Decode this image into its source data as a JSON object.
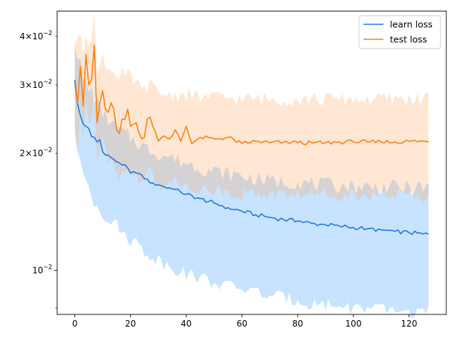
{
  "chart_data": {
    "type": "line",
    "title": "",
    "xlabel": "",
    "ylabel": "",
    "xlim": [
      -6.35,
      133.35
    ],
    "ylim": [
      0.0077,
      0.0465
    ],
    "yscale": "log",
    "grid": false,
    "legend_position": "top-right",
    "x_ticks": [
      0,
      20,
      40,
      60,
      80,
      100,
      120
    ],
    "x_tick_labels": [
      "0",
      "20",
      "40",
      "60",
      "80",
      "100",
      "120"
    ],
    "y_ticks_major": [
      0.01
    ],
    "y_major_labels": [
      {
        "value": 0.01,
        "mantissa": "",
        "exponent": "−2"
      }
    ],
    "y_ticks_minor": [
      0.008,
      0.02,
      0.03,
      0.04
    ],
    "y_minor_labels": [
      {
        "value": 0.02,
        "mantissa": "2",
        "exponent": "−2"
      },
      {
        "value": 0.03,
        "mantissa": "3",
        "exponent": "−2"
      },
      {
        "value": 0.04,
        "mantissa": "4",
        "exponent": "−2"
      }
    ],
    "series": [
      {
        "name": "learn loss",
        "color": "#1f77e0",
        "band_color": "#1f8fff",
        "knots_x": [
          0,
          1,
          2,
          3,
          4,
          5,
          6,
          7,
          8,
          9,
          10,
          11,
          12,
          14,
          16,
          18,
          20,
          22,
          24,
          25,
          28,
          30,
          32,
          35,
          38,
          40,
          45,
          50,
          55,
          60,
          65,
          70,
          75,
          80,
          85,
          90,
          95,
          100,
          105,
          110,
          115,
          120,
          125,
          127
        ],
        "knots_mean": [
          0.0309,
          0.0268,
          0.025,
          0.0238,
          0.0235,
          0.0232,
          0.0221,
          0.022,
          0.0214,
          0.0217,
          0.0202,
          0.0198,
          0.0198,
          0.0193,
          0.0189,
          0.0187,
          0.0178,
          0.0178,
          0.0176,
          0.0172,
          0.0168,
          0.0166,
          0.0164,
          0.0162,
          0.0159,
          0.0157,
          0.0153,
          0.0149,
          0.0145,
          0.0142,
          0.0139,
          0.0137,
          0.0135,
          0.0134,
          0.0132,
          0.0131,
          0.013,
          0.0129,
          0.0128,
          0.0127,
          0.0126,
          0.0125,
          0.0124,
          0.0124
        ],
        "knots_upper": [
          0.039,
          0.036,
          0.034,
          0.031,
          0.03,
          0.029,
          0.029,
          0.028,
          0.027,
          0.026,
          0.0255,
          0.025,
          0.0245,
          0.0235,
          0.023,
          0.0225,
          0.022,
          0.0215,
          0.021,
          0.0207,
          0.0203,
          0.02,
          0.0198,
          0.0195,
          0.0191,
          0.0189,
          0.0184,
          0.018,
          0.0177,
          0.0175,
          0.0172,
          0.017,
          0.0169,
          0.0168,
          0.0167,
          0.0166,
          0.0165,
          0.0165,
          0.0164,
          0.0164,
          0.0164,
          0.0163,
          0.0163,
          0.0163
        ],
        "knots_lower": [
          0.024,
          0.02,
          0.0185,
          0.0178,
          0.0172,
          0.0165,
          0.0158,
          0.015,
          0.0148,
          0.0145,
          0.014,
          0.0138,
          0.0136,
          0.0133,
          0.0128,
          0.0124,
          0.012,
          0.0118,
          0.0114,
          0.0112,
          0.0108,
          0.0107,
          0.0104,
          0.0102,
          0.01,
          0.0098,
          0.0096,
          0.0093,
          0.0091,
          0.009,
          0.0088,
          0.0086,
          0.0085,
          0.0084,
          0.0082,
          0.0082,
          0.0081,
          0.008,
          0.008,
          0.0079,
          0.0079,
          0.0078,
          0.0078,
          0.0078
        ]
      },
      {
        "name": "test loss",
        "color": "#ff7f0e",
        "band_color": "#ffa050",
        "knots_x": [
          0,
          1,
          2,
          3,
          4,
          5,
          6,
          7,
          8,
          9,
          10,
          11,
          12,
          13,
          14,
          15,
          16,
          17,
          18,
          19,
          20,
          22,
          24,
          25,
          26,
          27,
          28,
          30,
          32,
          34,
          35,
          36,
          38,
          40,
          42,
          45,
          50,
          55,
          60,
          65,
          70,
          75,
          80,
          85,
          90,
          95,
          100,
          105,
          110,
          115,
          120,
          125,
          127
        ],
        "knots_mean": [
          0.03,
          0.027,
          0.0335,
          0.0265,
          0.036,
          0.03,
          0.031,
          0.038,
          0.024,
          0.027,
          0.029,
          0.026,
          0.0255,
          0.027,
          0.026,
          0.023,
          0.0225,
          0.0245,
          0.0245,
          0.026,
          0.0235,
          0.024,
          0.0218,
          0.022,
          0.0245,
          0.0248,
          0.0235,
          0.0215,
          0.0222,
          0.0218,
          0.0222,
          0.023,
          0.0215,
          0.0235,
          0.0212,
          0.022,
          0.0218,
          0.022,
          0.0212,
          0.0215,
          0.0213,
          0.0214,
          0.0213,
          0.0213,
          0.0213,
          0.0214,
          0.0214,
          0.0214,
          0.0214,
          0.0214,
          0.0215,
          0.0215,
          0.0214
        ],
        "knots_upper": [
          0.039,
          0.038,
          0.042,
          0.037,
          0.042,
          0.039,
          0.039,
          0.044,
          0.032,
          0.035,
          0.036,
          0.034,
          0.033,
          0.034,
          0.033,
          0.031,
          0.031,
          0.032,
          0.031,
          0.032,
          0.031,
          0.0305,
          0.029,
          0.029,
          0.03,
          0.03,
          0.0295,
          0.0285,
          0.0285,
          0.0283,
          0.0283,
          0.0285,
          0.028,
          0.0285,
          0.028,
          0.028,
          0.0278,
          0.0278,
          0.0276,
          0.0276,
          0.0276,
          0.0276,
          0.0276,
          0.0276,
          0.0276,
          0.0276,
          0.0276,
          0.0276,
          0.0276,
          0.0276,
          0.0277,
          0.0277,
          0.0277
        ],
        "knots_lower": [
          0.022,
          0.02,
          0.026,
          0.021,
          0.027,
          0.024,
          0.024,
          0.029,
          0.019,
          0.021,
          0.022,
          0.02,
          0.0195,
          0.02,
          0.0195,
          0.0175,
          0.017,
          0.0185,
          0.018,
          0.019,
          0.0175,
          0.0175,
          0.0168,
          0.017,
          0.018,
          0.0182,
          0.0175,
          0.0165,
          0.0168,
          0.0165,
          0.0166,
          0.017,
          0.0163,
          0.0172,
          0.016,
          0.0163,
          0.016,
          0.016,
          0.0157,
          0.0158,
          0.0157,
          0.0157,
          0.0157,
          0.0157,
          0.0157,
          0.0157,
          0.0157,
          0.0156,
          0.0156,
          0.0156,
          0.0156,
          0.0155,
          0.0155
        ]
      }
    ]
  }
}
